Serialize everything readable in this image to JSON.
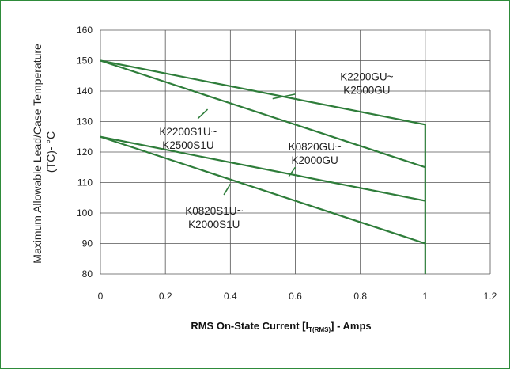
{
  "chart_data": {
    "type": "line",
    "title": "",
    "xlabel": {
      "prefix": "RMS On-State Current [I",
      "subscript": "T(RMS)",
      "suffix": "] - Amps"
    },
    "ylabel": {
      "line1": "Maximum Allowable Lead/Case Temperature",
      "line2": "(TC)- °C"
    },
    "xlim": [
      0,
      1.2
    ],
    "ylim": [
      80,
      160
    ],
    "x_ticks": [
      "0",
      "0.2",
      "0.4",
      "0.6",
      "0.8",
      "1",
      "1.2"
    ],
    "y_ticks": [
      "80",
      "90",
      "100",
      "110",
      "120",
      "130",
      "140",
      "150",
      "160"
    ],
    "grid": true,
    "line_color": "#2e7d3a",
    "series": [
      {
        "name": "K2200GU~ K2500GU",
        "x": [
          0,
          1,
          1
        ],
        "y": [
          150,
          129,
          80
        ]
      },
      {
        "name": "K2200S1U~ K2500S1U",
        "x": [
          0,
          1
        ],
        "y": [
          150,
          115
        ]
      },
      {
        "name": "K0820GU~ K2000GU",
        "x": [
          0,
          1
        ],
        "y": [
          125,
          104
        ]
      },
      {
        "name": "K0820S1U~ K2000S1U",
        "x": [
          0,
          1
        ],
        "y": [
          125,
          90
        ]
      }
    ],
    "annotations": [
      {
        "lines": [
          "K2200GU~",
          "K2500GU"
        ],
        "x": 0.82,
        "y": 143.5,
        "pointer": {
          "from": [
            0.6,
            139
          ],
          "to": [
            0.53,
            137.5
          ]
        }
      },
      {
        "lines": [
          "K2200S1U~",
          "K2500S1U"
        ],
        "x": 0.27,
        "y": 125.5,
        "pointer": {
          "from": [
            0.3,
            131
          ],
          "to": [
            0.33,
            134
          ]
        }
      },
      {
        "lines": [
          "K0820GU~",
          "K2000GU"
        ],
        "x": 0.66,
        "y": 120.5,
        "pointer": {
          "from": [
            0.6,
            115
          ],
          "to": [
            0.58,
            112
          ]
        }
      },
      {
        "lines": [
          "K0820S1U~",
          "K2000S1U"
        ],
        "x": 0.35,
        "y": 99.5,
        "pointer": {
          "from": [
            0.38,
            106
          ],
          "to": [
            0.4,
            109.5
          ]
        }
      }
    ]
  }
}
